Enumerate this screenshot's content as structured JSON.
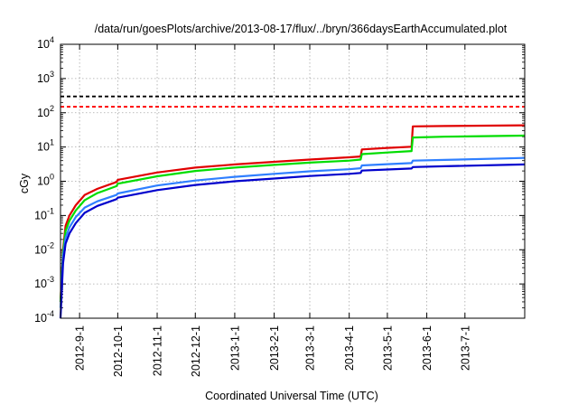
{
  "chart_data": {
    "type": "line",
    "title": "/data/run/goesPlots/archive/2013-08-17/flux/../bryn/366daysEarthAccumulated.plot",
    "xlabel": "Coordinated Universal Time (UTC)",
    "ylabel": "cGy",
    "x_range": [
      "2012-08-17",
      "2013-08-17"
    ],
    "y_range": [
      0.0001,
      10000
    ],
    "y_scale": "log",
    "grid": true,
    "legend": "none",
    "x_ticks": [
      {
        "date": "2012-09-01",
        "label": "2012-9-1"
      },
      {
        "date": "2012-10-01",
        "label": "2012-10-1"
      },
      {
        "date": "2012-11-01",
        "label": "2012-11-1"
      },
      {
        "date": "2012-12-01",
        "label": "2012-12-1"
      },
      {
        "date": "2013-01-01",
        "label": "2013-1-1"
      },
      {
        "date": "2013-02-01",
        "label": "2013-2-1"
      },
      {
        "date": "2013-03-01",
        "label": "2013-3-1"
      },
      {
        "date": "2013-04-01",
        "label": "2013-4-1"
      },
      {
        "date": "2013-05-01",
        "label": "2013-5-1"
      },
      {
        "date": "2013-06-01",
        "label": "2013-6-1"
      },
      {
        "date": "2013-07-01",
        "label": "2013-7-1"
      }
    ],
    "y_ticks": [
      {
        "value": 0.0001,
        "base": "10",
        "exp": "-4"
      },
      {
        "value": 0.001,
        "base": "10",
        "exp": "-3"
      },
      {
        "value": 0.01,
        "base": "10",
        "exp": "-2"
      },
      {
        "value": 0.1,
        "base": "10",
        "exp": "-1"
      },
      {
        "value": 1,
        "base": "10",
        "exp": "0"
      },
      {
        "value": 10,
        "base": "10",
        "exp": "1"
      },
      {
        "value": 100,
        "base": "10",
        "exp": "2"
      },
      {
        "value": 1000,
        "base": "10",
        "exp": "3"
      },
      {
        "value": 10000,
        "base": "10",
        "exp": "4"
      }
    ],
    "threshold_lines": [
      {
        "value": 300,
        "color": "#000000",
        "style": "dashed"
      },
      {
        "value": 150,
        "color": "#ff0000",
        "style": "dashed"
      }
    ],
    "series": [
      {
        "color": "#e00000",
        "points": [
          [
            "2012-08-17",
            0.0003
          ],
          [
            "2012-08-19",
            0.01
          ],
          [
            "2012-08-21",
            0.05
          ],
          [
            "2012-08-24",
            0.1
          ],
          [
            "2012-08-29",
            0.2
          ],
          [
            "2012-09-05",
            0.4
          ],
          [
            "2012-09-15",
            0.6
          ],
          [
            "2012-09-30",
            0.95
          ],
          [
            "2012-10-01",
            1.1
          ],
          [
            "2012-11-01",
            1.8
          ],
          [
            "2012-12-01",
            2.5
          ],
          [
            "2013-01-01",
            3.1
          ],
          [
            "2013-02-01",
            3.7
          ],
          [
            "2013-03-01",
            4.3
          ],
          [
            "2013-04-01",
            5.0
          ],
          [
            "2013-04-10",
            5.3
          ],
          [
            "2013-04-11",
            8.5
          ],
          [
            "2013-05-01",
            9.4
          ],
          [
            "2013-05-20",
            10.2
          ],
          [
            "2013-05-21",
            40
          ],
          [
            "2013-06-15",
            41
          ],
          [
            "2013-08-17",
            43
          ]
        ]
      },
      {
        "color": "#00dd00",
        "points": [
          [
            "2012-08-17",
            0.0003
          ],
          [
            "2012-08-19",
            0.008
          ],
          [
            "2012-08-21",
            0.035
          ],
          [
            "2012-08-24",
            0.07
          ],
          [
            "2012-08-29",
            0.14
          ],
          [
            "2012-09-05",
            0.28
          ],
          [
            "2012-09-15",
            0.45
          ],
          [
            "2012-09-30",
            0.72
          ],
          [
            "2012-10-01",
            0.85
          ],
          [
            "2012-11-01",
            1.4
          ],
          [
            "2012-12-01",
            2.0
          ],
          [
            "2013-01-01",
            2.5
          ],
          [
            "2013-02-01",
            3.0
          ],
          [
            "2013-03-01",
            3.5
          ],
          [
            "2013-04-01",
            4.0
          ],
          [
            "2013-04-10",
            4.3
          ],
          [
            "2013-04-11",
            6.2
          ],
          [
            "2013-05-01",
            6.9
          ],
          [
            "2013-05-20",
            7.6
          ],
          [
            "2013-05-21",
            19
          ],
          [
            "2013-06-15",
            20
          ],
          [
            "2013-08-17",
            21.5
          ]
        ]
      },
      {
        "color": "#2f7fff",
        "points": [
          [
            "2012-08-17",
            0.0002
          ],
          [
            "2012-08-19",
            0.006
          ],
          [
            "2012-08-21",
            0.022
          ],
          [
            "2012-08-24",
            0.045
          ],
          [
            "2012-08-29",
            0.09
          ],
          [
            "2012-09-05",
            0.17
          ],
          [
            "2012-09-15",
            0.26
          ],
          [
            "2012-09-30",
            0.4
          ],
          [
            "2012-10-01",
            0.44
          ],
          [
            "2012-11-01",
            0.75
          ],
          [
            "2012-12-01",
            1.05
          ],
          [
            "2013-01-01",
            1.35
          ],
          [
            "2013-02-01",
            1.65
          ],
          [
            "2013-03-01",
            1.95
          ],
          [
            "2013-04-01",
            2.25
          ],
          [
            "2013-04-10",
            2.4
          ],
          [
            "2013-04-11",
            2.9
          ],
          [
            "2013-05-01",
            3.15
          ],
          [
            "2013-05-20",
            3.4
          ],
          [
            "2013-05-21",
            4.0
          ],
          [
            "2013-06-15",
            4.2
          ],
          [
            "2013-08-17",
            4.8
          ]
        ]
      },
      {
        "color": "#0000cc",
        "points": [
          [
            "2012-08-17",
            0.0001
          ],
          [
            "2012-08-19",
            0.004
          ],
          [
            "2012-08-21",
            0.015
          ],
          [
            "2012-08-24",
            0.03
          ],
          [
            "2012-08-29",
            0.06
          ],
          [
            "2012-09-05",
            0.12
          ],
          [
            "2012-09-15",
            0.19
          ],
          [
            "2012-09-30",
            0.3
          ],
          [
            "2012-10-01",
            0.33
          ],
          [
            "2012-11-01",
            0.55
          ],
          [
            "2012-12-01",
            0.78
          ],
          [
            "2013-01-01",
            1.0
          ],
          [
            "2013-02-01",
            1.2
          ],
          [
            "2013-03-01",
            1.42
          ],
          [
            "2013-04-01",
            1.65
          ],
          [
            "2013-04-10",
            1.75
          ],
          [
            "2013-04-11",
            2.05
          ],
          [
            "2013-05-01",
            2.2
          ],
          [
            "2013-05-20",
            2.35
          ],
          [
            "2013-05-21",
            2.6
          ],
          [
            "2013-06-15",
            2.75
          ],
          [
            "2013-08-17",
            3.1
          ]
        ]
      }
    ]
  }
}
